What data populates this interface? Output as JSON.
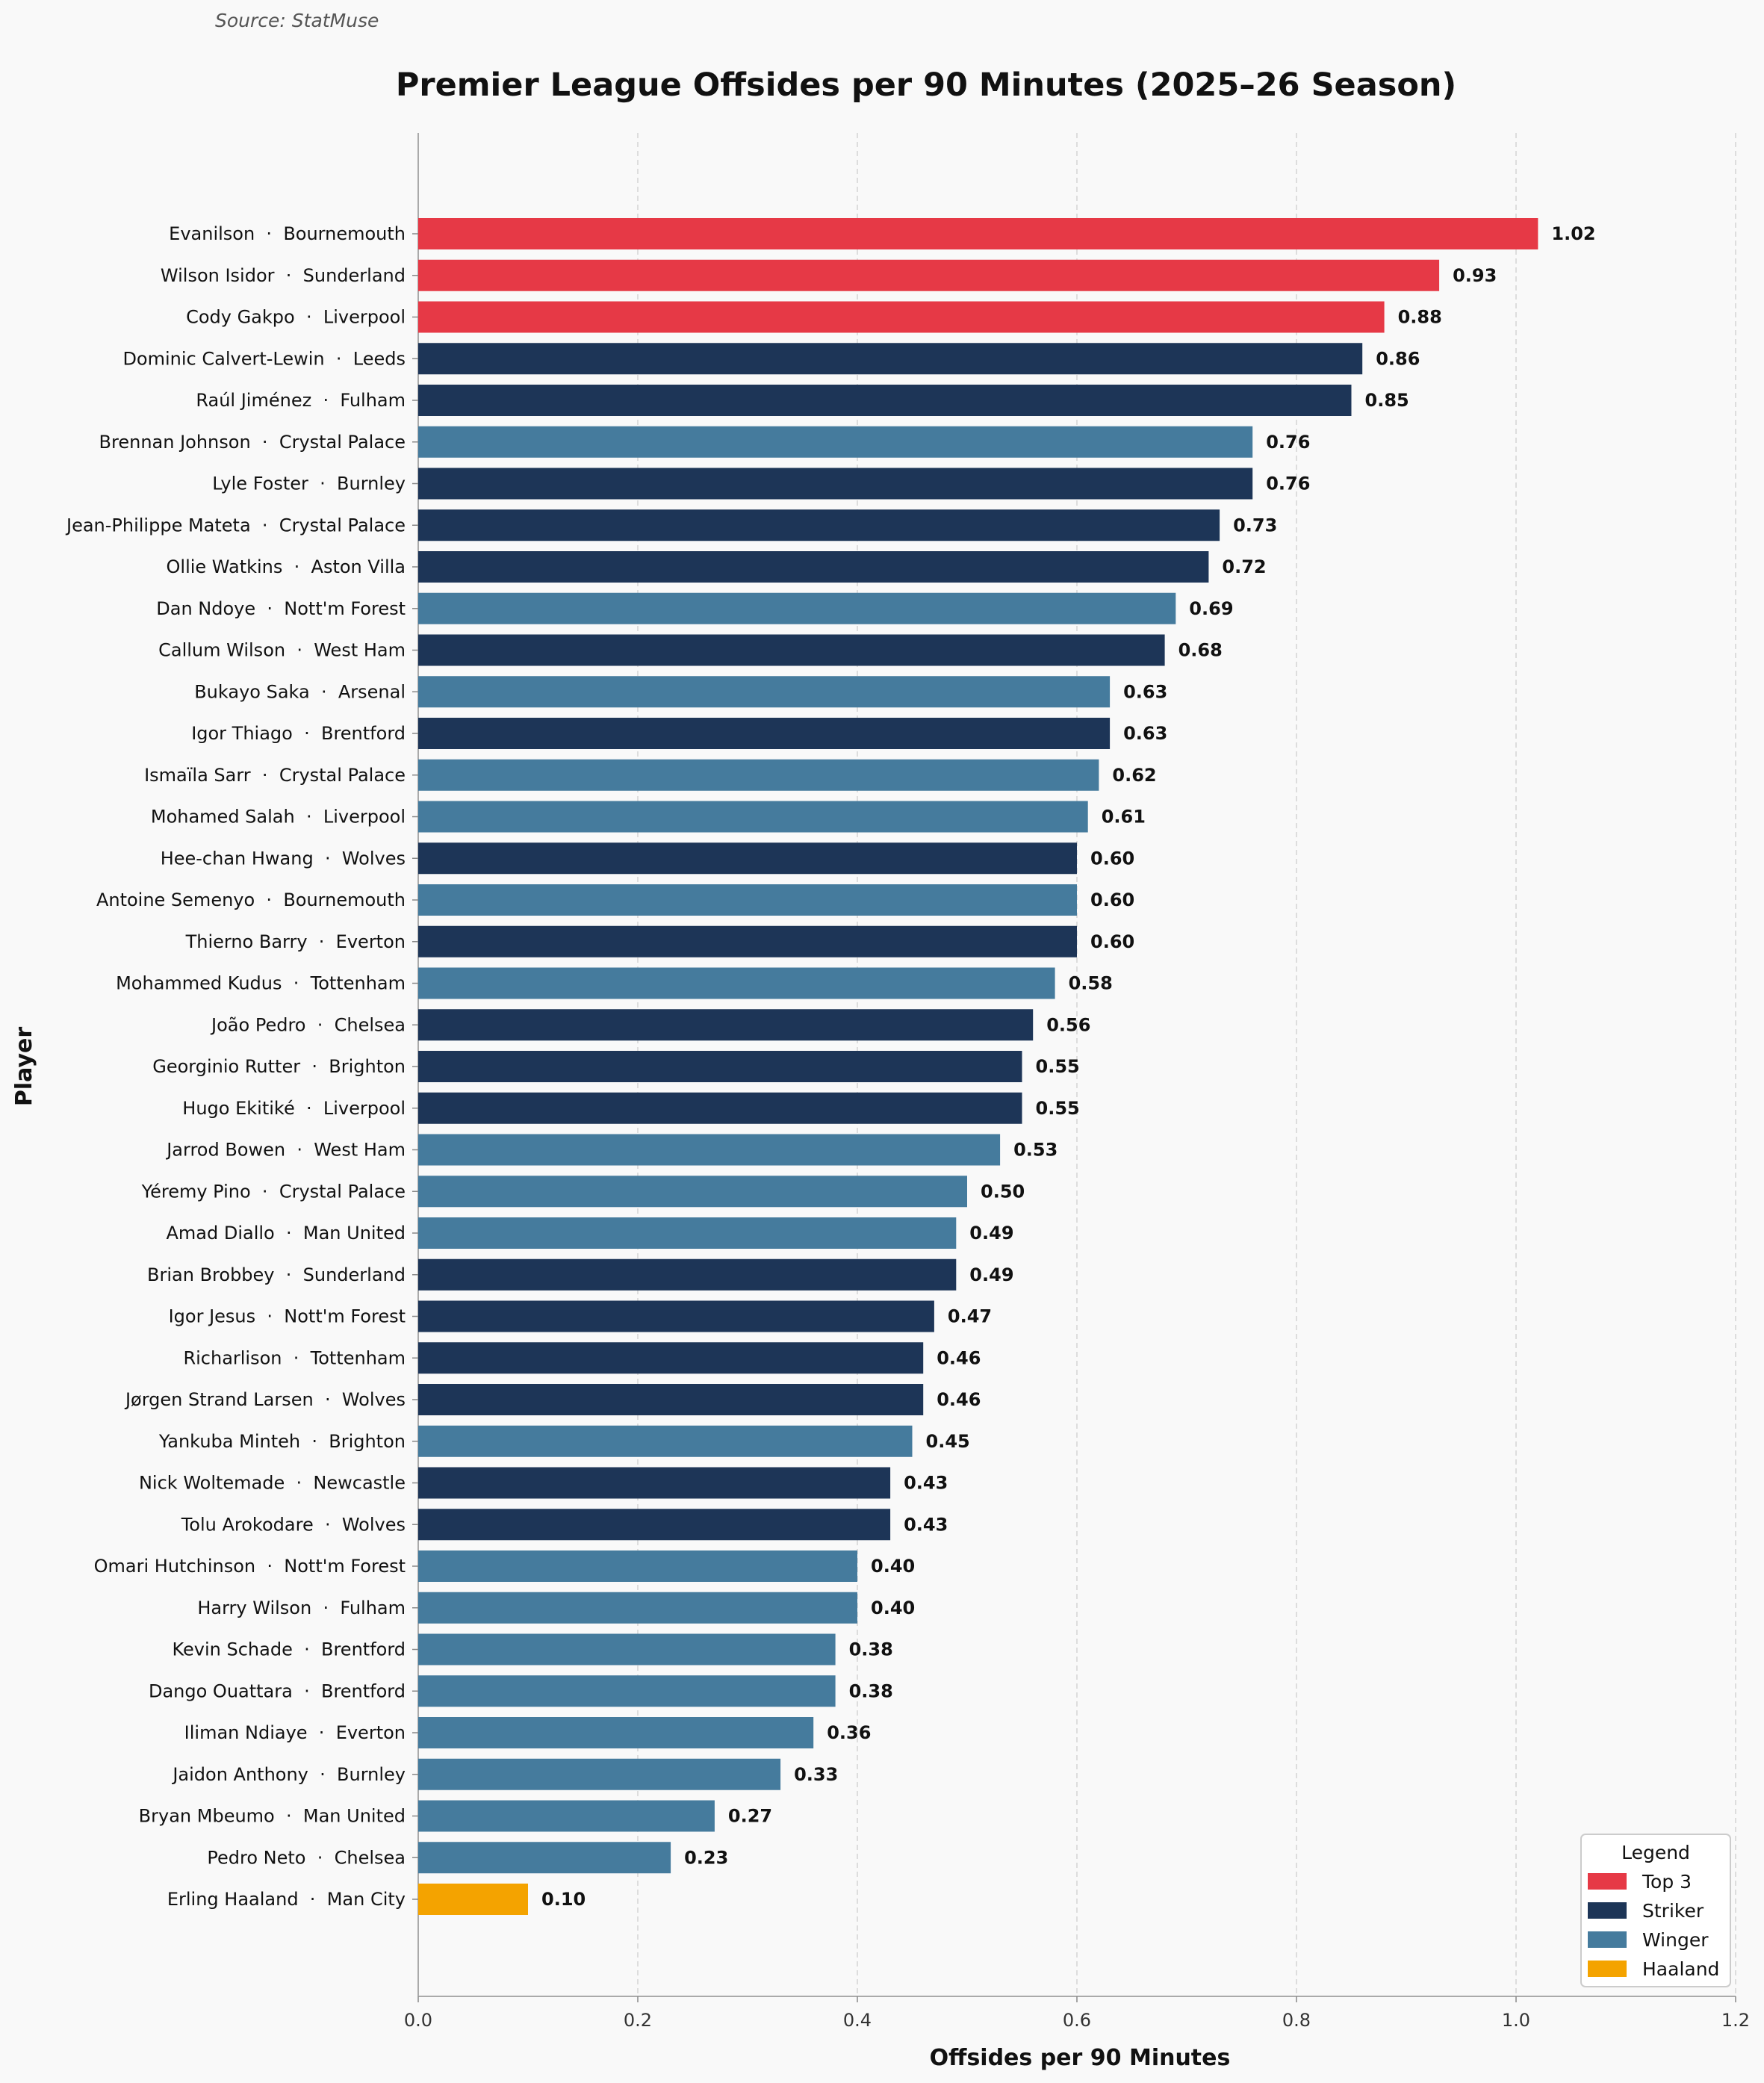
{
  "source": "Source: StatMuse",
  "chart_data": {
    "type": "bar",
    "orientation": "horizontal",
    "title": "Premier League Offsides per 90 Minutes (2025–26 Season)",
    "xlabel": "Offsides per 90 Minutes",
    "ylabel": "Player",
    "xlim": [
      0,
      1.2
    ],
    "xticks": [
      "0.0",
      "0.2",
      "0.4",
      "0.6",
      "0.8",
      "1.0",
      "1.2"
    ],
    "grid": "vertical dashed",
    "colors": {
      "Top 3": "#e63946",
      "Striker": "#1d3557",
      "Winger": "#457b9d",
      "Haaland": "#f4a300"
    },
    "legend": {
      "title": "Legend",
      "position": "bottom-right",
      "entries": [
        "Top 3",
        "Striker",
        "Winger",
        "Haaland"
      ]
    },
    "bars": [
      {
        "label": "Evanilson  ·  Bournemouth",
        "value": 1.02,
        "text": "1.02",
        "group": "Top 3"
      },
      {
        "label": "Wilson Isidor  ·  Sunderland",
        "value": 0.93,
        "text": "0.93",
        "group": "Top 3"
      },
      {
        "label": "Cody Gakpo  ·  Liverpool",
        "value": 0.88,
        "text": "0.88",
        "group": "Top 3"
      },
      {
        "label": "Dominic Calvert-Lewin  ·  Leeds",
        "value": 0.86,
        "text": "0.86",
        "group": "Striker"
      },
      {
        "label": "Raúl Jiménez  ·  Fulham",
        "value": 0.85,
        "text": "0.85",
        "group": "Striker"
      },
      {
        "label": "Brennan Johnson  ·  Crystal Palace",
        "value": 0.76,
        "text": "0.76",
        "group": "Winger"
      },
      {
        "label": "Lyle Foster  ·  Burnley",
        "value": 0.76,
        "text": "0.76",
        "group": "Striker"
      },
      {
        "label": "Jean-Philippe Mateta  ·  Crystal Palace",
        "value": 0.73,
        "text": "0.73",
        "group": "Striker"
      },
      {
        "label": "Ollie Watkins  ·  Aston Villa",
        "value": 0.72,
        "text": "0.72",
        "group": "Striker"
      },
      {
        "label": "Dan Ndoye  ·  Nott'm Forest",
        "value": 0.69,
        "text": "0.69",
        "group": "Winger"
      },
      {
        "label": "Callum Wilson  ·  West Ham",
        "value": 0.68,
        "text": "0.68",
        "group": "Striker"
      },
      {
        "label": "Bukayo Saka  ·  Arsenal",
        "value": 0.63,
        "text": "0.63",
        "group": "Winger"
      },
      {
        "label": "Igor Thiago  ·  Brentford",
        "value": 0.63,
        "text": "0.63",
        "group": "Striker"
      },
      {
        "label": "Ismaïla Sarr  ·  Crystal Palace",
        "value": 0.62,
        "text": "0.62",
        "group": "Winger"
      },
      {
        "label": "Mohamed Salah  ·  Liverpool",
        "value": 0.61,
        "text": "0.61",
        "group": "Winger"
      },
      {
        "label": "Hee-chan Hwang  ·  Wolves",
        "value": 0.6,
        "text": "0.60",
        "group": "Striker"
      },
      {
        "label": "Antoine Semenyo  ·  Bournemouth",
        "value": 0.6,
        "text": "0.60",
        "group": "Winger"
      },
      {
        "label": "Thierno Barry  ·  Everton",
        "value": 0.6,
        "text": "0.60",
        "group": "Striker"
      },
      {
        "label": "Mohammed Kudus  ·  Tottenham",
        "value": 0.58,
        "text": "0.58",
        "group": "Winger"
      },
      {
        "label": "João Pedro  ·  Chelsea",
        "value": 0.56,
        "text": "0.56",
        "group": "Striker"
      },
      {
        "label": "Georginio Rutter  ·  Brighton",
        "value": 0.55,
        "text": "0.55",
        "group": "Striker"
      },
      {
        "label": "Hugo Ekitiké  ·  Liverpool",
        "value": 0.55,
        "text": "0.55",
        "group": "Striker"
      },
      {
        "label": "Jarrod Bowen  ·  West Ham",
        "value": 0.53,
        "text": "0.53",
        "group": "Winger"
      },
      {
        "label": "Yéremy Pino  ·  Crystal Palace",
        "value": 0.5,
        "text": "0.50",
        "group": "Winger"
      },
      {
        "label": "Amad Diallo  ·  Man United",
        "value": 0.49,
        "text": "0.49",
        "group": "Winger"
      },
      {
        "label": "Brian Brobbey  ·  Sunderland",
        "value": 0.49,
        "text": "0.49",
        "group": "Striker"
      },
      {
        "label": "Igor Jesus  ·  Nott'm Forest",
        "value": 0.47,
        "text": "0.47",
        "group": "Striker"
      },
      {
        "label": "Richarlison  ·  Tottenham",
        "value": 0.46,
        "text": "0.46",
        "group": "Striker"
      },
      {
        "label": "Jørgen Strand Larsen  ·  Wolves",
        "value": 0.46,
        "text": "0.46",
        "group": "Striker"
      },
      {
        "label": "Yankuba Minteh  ·  Brighton",
        "value": 0.45,
        "text": "0.45",
        "group": "Winger"
      },
      {
        "label": "Nick Woltemade  ·  Newcastle",
        "value": 0.43,
        "text": "0.43",
        "group": "Striker"
      },
      {
        "label": "Tolu Arokodare  ·  Wolves",
        "value": 0.43,
        "text": "0.43",
        "group": "Striker"
      },
      {
        "label": "Omari Hutchinson  ·  Nott'm Forest",
        "value": 0.4,
        "text": "0.40",
        "group": "Winger"
      },
      {
        "label": "Harry Wilson  ·  Fulham",
        "value": 0.4,
        "text": "0.40",
        "group": "Winger"
      },
      {
        "label": "Kevin Schade  ·  Brentford",
        "value": 0.38,
        "text": "0.38",
        "group": "Winger"
      },
      {
        "label": "Dango Ouattara  ·  Brentford",
        "value": 0.38,
        "text": "0.38",
        "group": "Winger"
      },
      {
        "label": "Iliman Ndiaye  ·  Everton",
        "value": 0.36,
        "text": "0.36",
        "group": "Winger"
      },
      {
        "label": "Jaidon Anthony  ·  Burnley",
        "value": 0.33,
        "text": "0.33",
        "group": "Winger"
      },
      {
        "label": "Bryan Mbeumo  ·  Man United",
        "value": 0.27,
        "text": "0.27",
        "group": "Winger"
      },
      {
        "label": "Pedro Neto  ·  Chelsea",
        "value": 0.23,
        "text": "0.23",
        "group": "Winger"
      },
      {
        "label": "Erling Haaland  ·  Man City",
        "value": 0.1,
        "text": "0.10",
        "group": "Haaland"
      }
    ]
  }
}
